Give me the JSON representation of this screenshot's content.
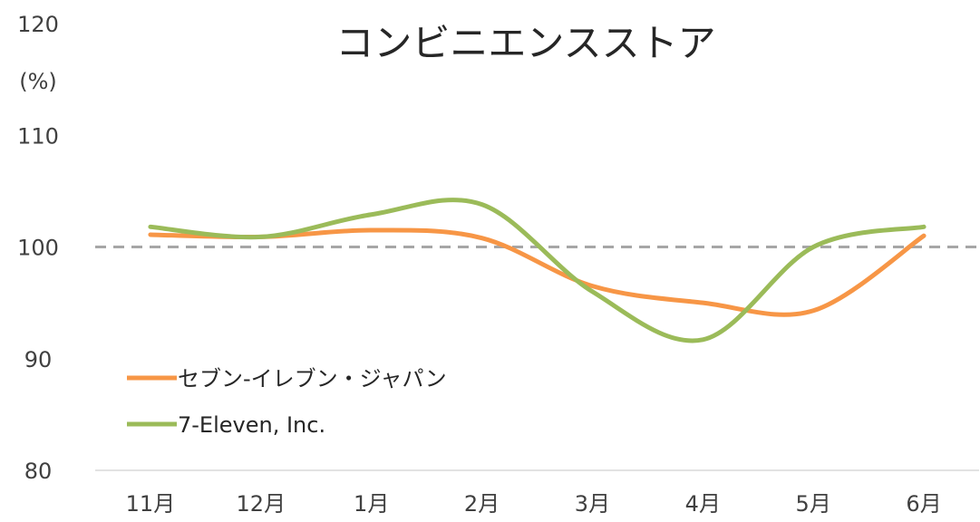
{
  "chart_data": {
    "type": "line",
    "title": "コンビニエンスストア",
    "ylabel": "(%)",
    "xlabel": "",
    "categories": [
      "11月",
      "12月",
      "1月",
      "2月",
      "3月",
      "4月",
      "5月",
      "6月"
    ],
    "ylim": [
      80,
      120
    ],
    "yticks": [
      80,
      90,
      100,
      110,
      120
    ],
    "reference_line": {
      "y": 100,
      "style": "dashed",
      "color": "#a6a6a6"
    },
    "series": [
      {
        "name": "セブン-イレブン・ジャパン",
        "color": "#f79646",
        "values": [
          101.1,
          100.9,
          101.5,
          100.8,
          96.5,
          95.0,
          94.3,
          101.0
        ]
      },
      {
        "name": "7-Eleven, Inc.",
        "color": "#9bbb59",
        "values": [
          101.8,
          100.9,
          102.9,
          103.8,
          96.0,
          91.7,
          100.0,
          101.8
        ]
      }
    ],
    "legend_position": "lower-left",
    "grid": false
  }
}
